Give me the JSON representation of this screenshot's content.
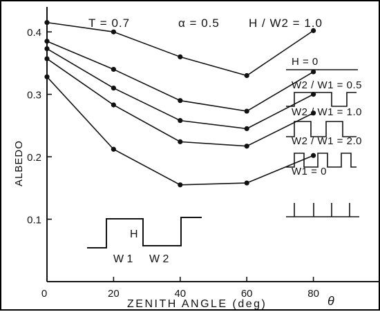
{
  "chart_data": {
    "type": "line",
    "title": "",
    "header": {
      "t": "T = 0.7",
      "alpha": "α = 0.5",
      "hw": "H / W2 = 1.0"
    },
    "xlabel": "ZENITH ANGLE (deg)",
    "xsymbol": "θ",
    "ylabel": "ALBEDO",
    "xlim": [
      0,
      100
    ],
    "ylim": [
      0,
      0.44
    ],
    "xticks": [
      0,
      20,
      40,
      60,
      80
    ],
    "xtick_labels": [
      "0",
      "20",
      "40",
      "60",
      "80"
    ],
    "yticks": [
      0.1,
      0.2,
      0.3,
      0.4
    ],
    "ytick_labels": [
      "0.1",
      "0.2",
      "0.3",
      "0.4"
    ],
    "grid": false,
    "x": [
      0,
      20,
      40,
      60,
      80
    ],
    "series": [
      {
        "name": "H = 0",
        "values": [
          0.415,
          0.4,
          0.36,
          0.33,
          0.402
        ]
      },
      {
        "name": "W2 / W1 = 0.5",
        "values": [
          0.385,
          0.34,
          0.29,
          0.273,
          0.336
        ]
      },
      {
        "name": "W2 / W1 = 1.0",
        "values": [
          0.373,
          0.31,
          0.258,
          0.245,
          0.3
        ]
      },
      {
        "name": "W2 / W1 = 2.0",
        "values": [
          0.357,
          0.283,
          0.224,
          0.217,
          0.27
        ]
      },
      {
        "name": "W1 = 0",
        "values": [
          0.328,
          0.212,
          0.155,
          0.158,
          0.202
        ]
      }
    ],
    "inset_labels": {
      "h": "H",
      "w1": "W 1",
      "w2": "W 2"
    },
    "legend_placement": "right",
    "line_color": "#111111"
  }
}
